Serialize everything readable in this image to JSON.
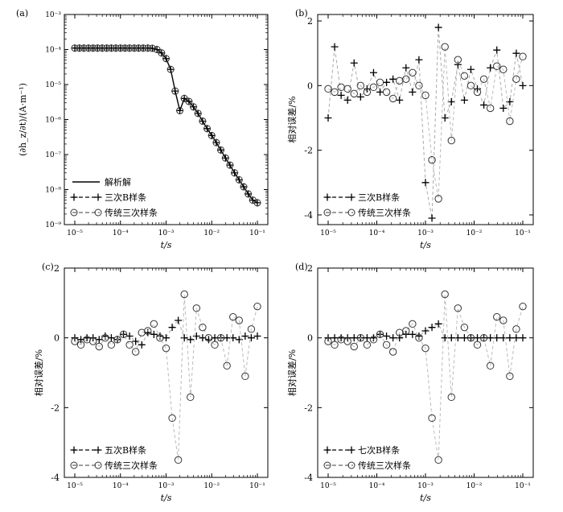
{
  "chart_data": [
    {
      "id": "a",
      "type": "line",
      "panel_label": "(a)",
      "ylabel": "(∂h_z/∂t)/(A·m⁻¹)",
      "xlabel": "t/s",
      "xscale": "log",
      "yscale": "log",
      "xlim": [
        1e-05,
        0.1
      ],
      "ylim": [
        1e-09,
        0.001
      ],
      "xticks": [
        "10⁻⁵",
        "10⁻⁴",
        "10⁻³",
        "10⁻²",
        "10⁻¹"
      ],
      "yticks": [
        "10⁻³",
        "10⁻⁴",
        "10⁻⁵",
        "10⁻⁶",
        "10⁻⁷",
        "10⁻⁸",
        "10⁻⁹"
      ],
      "legend_position": "bottom-left",
      "legend": [
        "解析解",
        "三次B样条",
        "传统三次样条"
      ],
      "x": [
        1e-05,
        1.26e-05,
        1.58e-05,
        2e-05,
        2.51e-05,
        3.16e-05,
        3.98e-05,
        5.01e-05,
        6.31e-05,
        7.94e-05,
        0.0001,
        0.000126,
        0.000158,
        0.0002,
        0.000251,
        0.000316,
        0.000398,
        0.000501,
        0.000631,
        0.000794,
        0.001,
        0.00126,
        0.00158,
        0.002,
        0.00251,
        0.00316,
        0.00398,
        0.00501,
        0.00631,
        0.00794,
        0.01,
        0.0126,
        0.0158,
        0.02,
        0.0251,
        0.0316,
        0.0398,
        0.0501,
        0.0631,
        0.0794,
        0.1
      ],
      "series": [
        {
          "name": "解析解",
          "style": "solid",
          "values": [
            0.00011,
            0.00011,
            0.00011,
            0.00011,
            0.00011,
            0.00011,
            0.00011,
            0.00011,
            0.00011,
            0.00011,
            0.00011,
            0.00011,
            0.00011,
            0.00011,
            0.00011,
            0.00011,
            0.00011,
            0.000108,
            0.0001,
            8e-05,
            5.5e-05,
            2.7e-05,
            6.5e-06,
            1.8e-06,
            4e-06,
            3.3e-06,
            2.3e-06,
            1.5e-06,
            9e-07,
            5.5e-07,
            3.5e-07,
            2.2e-07,
            1.35e-07,
            8e-08,
            5e-08,
            3e-08,
            1.9e-08,
            1.2e-08,
            7.5e-09,
            5e-09,
            4.2e-09
          ]
        },
        {
          "name": "三次B样条",
          "style": "dashed-plus",
          "values": [
            0.00011,
            0.00011,
            0.00011,
            0.00011,
            0.00011,
            0.00011,
            0.00011,
            0.00011,
            0.00011,
            0.00011,
            0.00011,
            0.00011,
            0.00011,
            0.00011,
            0.00011,
            0.00011,
            0.00011,
            0.000108,
            0.0001,
            8e-05,
            5.5e-05,
            2.7e-05,
            6.5e-06,
            1.8e-06,
            4e-06,
            3.3e-06,
            2.3e-06,
            1.5e-06,
            9e-07,
            5.5e-07,
            3.5e-07,
            2.2e-07,
            1.35e-07,
            8e-08,
            5e-08,
            3e-08,
            1.9e-08,
            1.2e-08,
            7.5e-09,
            5e-09,
            4.2e-09
          ]
        },
        {
          "name": "传统三次样条",
          "style": "dashed-circle",
          "values": [
            0.00011,
            0.00011,
            0.00011,
            0.00011,
            0.00011,
            0.00011,
            0.00011,
            0.00011,
            0.00011,
            0.00011,
            0.00011,
            0.00011,
            0.00011,
            0.00011,
            0.00011,
            0.00011,
            0.00011,
            0.000108,
            0.0001,
            8e-05,
            5.5e-05,
            2.7e-05,
            6.5e-06,
            1.8e-06,
            4e-06,
            3.3e-06,
            2.3e-06,
            1.5e-06,
            9e-07,
            5.5e-07,
            3.5e-07,
            2.2e-07,
            1.35e-07,
            8e-08,
            5e-08,
            3e-08,
            1.9e-08,
            1.2e-08,
            7.5e-09,
            5e-09,
            4.2e-09
          ]
        }
      ]
    },
    {
      "id": "b",
      "type": "line",
      "panel_label": "(b)",
      "ylabel": "相对误差/%",
      "xlabel": "t/s",
      "xscale": "log",
      "xlim": [
        1e-05,
        0.1
      ],
      "ylim": [
        -4.3,
        2.2
      ],
      "xticks": [
        "10⁻⁵",
        "10⁻⁴",
        "10⁻³",
        "10⁻²",
        "10⁻¹"
      ],
      "yticks": [
        2,
        0,
        -2,
        -4
      ],
      "legend_position": "bottom-left",
      "legend": [
        "三次B样条",
        "传统三次样条"
      ],
      "x": [
        1e-05,
        1.26e-05,
        1.58e-05,
        2e-05,
        2.51e-05,
        3.16e-05,
        3.98e-05,
        5.01e-05,
        6.31e-05,
        7.94e-05,
        0.0001,
        0.000126,
        0.000158,
        0.0002,
        0.000251,
        0.000316,
        0.000398,
        0.000501,
        0.000631,
        0.000794,
        0.001,
        0.00126,
        0.00158,
        0.002,
        0.00251,
        0.00316,
        0.00398,
        0.00501,
        0.00631,
        0.00794,
        0.01,
        0.0126,
        0.0158,
        0.02,
        0.0251,
        0.0316,
        0.0398,
        0.0501,
        0.0631,
        0.0794,
        0.1
      ],
      "series": [
        {
          "name": "三次B样条",
          "style": "dashed-plus",
          "values": [
            -1.0,
            1.2,
            -0.3,
            -0.45,
            0.7,
            -0.35,
            -0.1,
            0.4,
            -0.2,
            0.1,
            0.2,
            -0.45,
            0.55,
            -0.2,
            0.8,
            -3.0,
            -4.1,
            1.8,
            -1.0,
            -0.5,
            0.65,
            -0.45,
            0.5,
            -0.1,
            -0.6,
            0.55,
            1.1,
            -0.7,
            -0.5,
            1.0,
            0.0,
            0,
            0,
            0,
            0,
            0,
            0,
            0,
            0,
            0,
            0
          ]
        },
        {
          "name": "传统三次样条",
          "style": "dashed-circle",
          "values": [
            -0.1,
            -0.2,
            -0.05,
            -0.1,
            -0.25,
            0.0,
            -0.2,
            -0.05,
            0.1,
            -0.2,
            -0.4,
            0.15,
            0.2,
            0.4,
            0.0,
            -0.3,
            -2.3,
            -3.5,
            1.2,
            -1.7,
            0.8,
            0.3,
            0.0,
            -0.2,
            0.2,
            -0.7,
            0.6,
            0.5,
            -1.1,
            0.2,
            0.9,
            0,
            0,
            0,
            0,
            0,
            0,
            0,
            0,
            0,
            0
          ]
        }
      ]
    },
    {
      "id": "c",
      "type": "line",
      "panel_label": "(c)",
      "ylabel": "相对误差/%",
      "xlabel": "t/s",
      "xscale": "log",
      "xlim": [
        1e-05,
        0.1
      ],
      "ylim": [
        -4,
        2
      ],
      "xticks": [
        "10⁻⁵",
        "10⁻⁴",
        "10⁻³",
        "10⁻²",
        "10⁻¹"
      ],
      "yticks": [
        2,
        0,
        -2,
        -4
      ],
      "legend_position": "bottom-left",
      "legend": [
        "五次B样条",
        "传统三次样条"
      ],
      "x": [
        1e-05,
        1.26e-05,
        1.58e-05,
        2e-05,
        2.51e-05,
        3.16e-05,
        3.98e-05,
        5.01e-05,
        6.31e-05,
        7.94e-05,
        0.0001,
        0.000126,
        0.000158,
        0.0002,
        0.000251,
        0.000316,
        0.000398,
        0.000501,
        0.000631,
        0.000794,
        0.001,
        0.00126,
        0.00158,
        0.002,
        0.00251,
        0.00316,
        0.00398,
        0.00501,
        0.00631,
        0.00794,
        0.01,
        0.0126,
        0.0158,
        0.02,
        0.0251,
        0.0316,
        0.0398,
        0.0501,
        0.0631,
        0.0794,
        0.1
      ],
      "series": [
        {
          "name": "五次B样条",
          "style": "dashed-plus",
          "values": [
            0.0,
            -0.05,
            0.0,
            0.0,
            -0.05,
            0.05,
            0.0,
            -0.05,
            0.1,
            0.05,
            -0.1,
            -0.2,
            0.15,
            0.1,
            0.05,
            0.0,
            0.3,
            0.5,
            0.0,
            -0.05,
            0.05,
            0.0,
            -0.05,
            0.0,
            0.0,
            0.0,
            0.0,
            -0.05,
            0.05,
            0.0,
            0.05,
            0,
            0,
            0,
            0,
            0,
            0,
            0,
            0,
            0,
            0
          ]
        },
        {
          "name": "传统三次样条",
          "style": "dashed-circle",
          "values": [
            -0.1,
            -0.2,
            -0.05,
            -0.1,
            -0.25,
            0.0,
            -0.2,
            -0.05,
            0.1,
            -0.2,
            -0.4,
            0.15,
            0.2,
            0.4,
            0.0,
            -0.3,
            -2.3,
            -3.5,
            1.25,
            -1.7,
            0.85,
            0.3,
            0.0,
            -0.2,
            0.0,
            -0.8,
            0.6,
            0.5,
            -1.1,
            0.25,
            0.9,
            0,
            0,
            0,
            0,
            0,
            0,
            0,
            0,
            0,
            0
          ]
        }
      ]
    },
    {
      "id": "d",
      "type": "line",
      "panel_label": "(d)",
      "ylabel": "相对误差/%",
      "xlabel": "t/s",
      "xscale": "log",
      "xlim": [
        1e-05,
        0.1
      ],
      "ylim": [
        -4,
        2
      ],
      "xticks": [
        "10⁻⁵",
        "10⁻⁴",
        "10⁻³",
        "10⁻²",
        "10⁻¹"
      ],
      "yticks": [
        2,
        0,
        -2,
        -4
      ],
      "legend_position": "bottom-left",
      "legend": [
        "七次B样条",
        "传统三次样条"
      ],
      "x": [
        1e-05,
        1.26e-05,
        1.58e-05,
        2e-05,
        2.51e-05,
        3.16e-05,
        3.98e-05,
        5.01e-05,
        6.31e-05,
        7.94e-05,
        0.0001,
        0.000126,
        0.000158,
        0.0002,
        0.000251,
        0.000316,
        0.000398,
        0.000501,
        0.000631,
        0.000794,
        0.001,
        0.00126,
        0.00158,
        0.002,
        0.00251,
        0.00316,
        0.00398,
        0.00501,
        0.00631,
        0.00794,
        0.01,
        0.0126,
        0.0158,
        0.02,
        0.0251,
        0.0316,
        0.0398,
        0.0501,
        0.0631,
        0.0794,
        0.1
      ],
      "series": [
        {
          "name": "七次B样条",
          "style": "dashed-plus",
          "values": [
            0.0,
            0.0,
            0.0,
            0.0,
            0.0,
            0.0,
            0.0,
            0.0,
            0.1,
            0.05,
            0.0,
            0.0,
            0.1,
            0.1,
            0.05,
            0.2,
            0.3,
            0.4,
            0.0,
            0.0,
            0.0,
            0.0,
            0.0,
            0.0,
            0.0,
            0.0,
            0.0,
            0.0,
            0.0,
            0.0,
            0.0,
            0,
            0,
            0,
            0,
            0,
            0,
            0,
            0,
            0,
            0
          ]
        },
        {
          "name": "传统三次样条",
          "style": "dashed-circle",
          "values": [
            -0.1,
            -0.2,
            -0.05,
            -0.1,
            -0.25,
            0.0,
            -0.2,
            -0.05,
            0.1,
            -0.2,
            -0.4,
            0.15,
            0.2,
            0.4,
            0.0,
            -0.3,
            -2.3,
            -3.5,
            1.25,
            -1.7,
            0.85,
            0.3,
            0.0,
            -0.2,
            0.0,
            -0.8,
            0.6,
            0.5,
            -1.1,
            0.25,
            0.9,
            0,
            0,
            0,
            0,
            0,
            0,
            0,
            0,
            0,
            0
          ]
        }
      ]
    }
  ]
}
